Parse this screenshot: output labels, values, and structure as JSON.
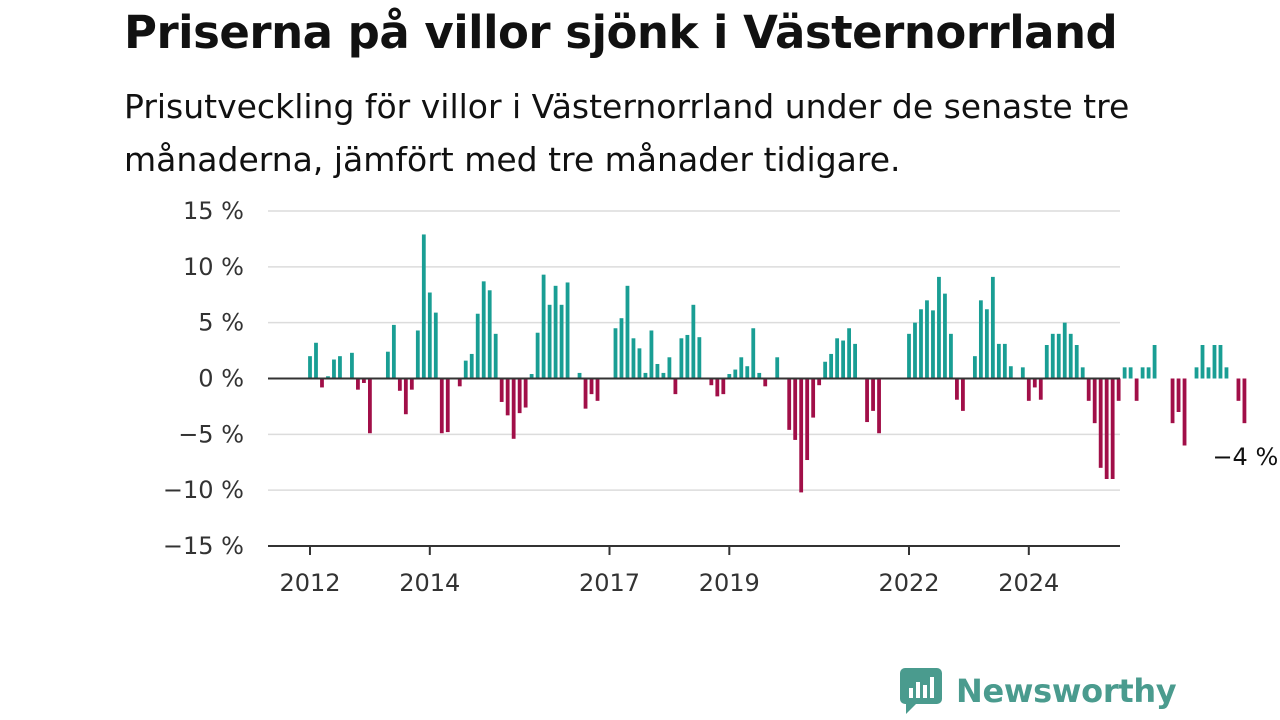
{
  "title": "Priserna på villor sjönk i Västernorrland",
  "subtitle": "Prisutveckling för villor i Västernorrland under de senaste tre månaderna, jämfört med tre månader tidigare.",
  "brand": {
    "name": "Newsworthy",
    "icon": "bar-chart-logo-icon",
    "color": "#4a9b8e"
  },
  "colors": {
    "positive": "#199e94",
    "negative": "#a10f48"
  },
  "chart_data": {
    "type": "bar",
    "ylim": [
      -15,
      15
    ],
    "yticks": [
      15,
      10,
      5,
      0,
      -5,
      -10,
      -15
    ],
    "ytick_labels": [
      "15 %",
      "10 %",
      "5 %",
      "0 %",
      "−5 %",
      "−10 %",
      "−15 %"
    ],
    "xtick_labels": [
      "2012",
      "2014",
      "2017",
      "2019",
      "2022",
      "2024"
    ],
    "xtick_index": [
      0,
      20,
      50,
      70,
      100,
      120
    ],
    "grid": true,
    "values": [
      2,
      3.2,
      -0.8,
      0.2,
      1.7,
      2,
      0,
      2.3,
      -1,
      -0.4,
      -4.9,
      0,
      0,
      2.4,
      4.8,
      -1.1,
      -3.2,
      -1,
      4.3,
      12.9,
      7.7,
      5.9,
      -4.9,
      -4.8,
      0,
      -0.7,
      1.6,
      2.2,
      5.8,
      8.7,
      7.9,
      4,
      -2.1,
      -3.3,
      -5.4,
      -3.1,
      -2.6,
      0.4,
      4.1,
      9.3,
      6.6,
      8.3,
      6.6,
      8.6,
      0,
      0.5,
      -2.7,
      -1.4,
      -2,
      0,
      0,
      4.5,
      5.4,
      8.3,
      3.6,
      2.7,
      0.5,
      4.3,
      1.3,
      0.5,
      1.9,
      -1.4,
      3.6,
      3.9,
      6.6,
      3.7,
      0,
      -0.6,
      -1.6,
      -1.4,
      0.4,
      0.8,
      1.9,
      1.1,
      4.5,
      0.5,
      -0.7,
      0,
      1.9,
      0,
      -4.6,
      -5.5,
      -10.2,
      -7.3,
      -3.5,
      -0.6,
      1.5,
      2.2,
      3.6,
      3.4,
      4.5,
      3.1,
      0,
      -3.9,
      -2.9,
      -4.9,
      0,
      0,
      0,
      0,
      4,
      5,
      6.2,
      7,
      6.1,
      9.1,
      7.6,
      4,
      -1.9,
      -2.9,
      0,
      2,
      7,
      6.2,
      9.1,
      3.1,
      3.1,
      1.1,
      0,
      1,
      -2,
      -0.8,
      -1.9,
      3,
      4,
      4,
      5,
      4,
      3,
      1,
      -2,
      -4,
      -8,
      -9,
      -9,
      -2,
      1,
      1,
      -2,
      1,
      1,
      3,
      0,
      0,
      -4,
      -3,
      -6,
      0,
      1,
      3,
      1,
      3,
      3,
      1,
      0,
      -2,
      -4
    ],
    "annotation": "−4 %"
  }
}
